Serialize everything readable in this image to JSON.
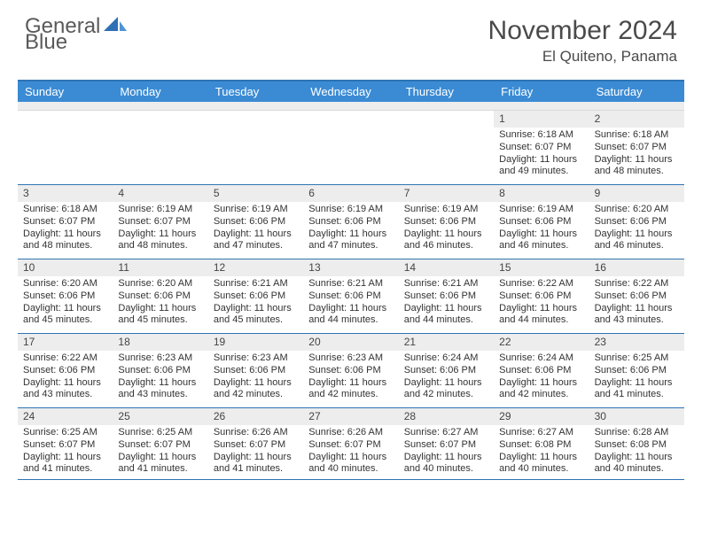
{
  "logo": {
    "text_general": "General",
    "text_blue": "Blue"
  },
  "title": {
    "month": "November 2024",
    "location": "El Quiteno, Panama"
  },
  "colors": {
    "header_bg": "#3b8bd4",
    "header_border": "#2e74b5",
    "daynum_bg": "#ededed",
    "text": "#333333",
    "logo_gray": "#5a5a5a",
    "logo_blue": "#3b7fc4"
  },
  "day_labels": [
    "Sunday",
    "Monday",
    "Tuesday",
    "Wednesday",
    "Thursday",
    "Friday",
    "Saturday"
  ],
  "weeks": [
    [
      {
        "empty": true
      },
      {
        "empty": true
      },
      {
        "empty": true
      },
      {
        "empty": true
      },
      {
        "empty": true
      },
      {
        "n": "1",
        "sunrise": "Sunrise: 6:18 AM",
        "sunset": "Sunset: 6:07 PM",
        "daylight": "Daylight: 11 hours and 49 minutes."
      },
      {
        "n": "2",
        "sunrise": "Sunrise: 6:18 AM",
        "sunset": "Sunset: 6:07 PM",
        "daylight": "Daylight: 11 hours and 48 minutes."
      }
    ],
    [
      {
        "n": "3",
        "sunrise": "Sunrise: 6:18 AM",
        "sunset": "Sunset: 6:07 PM",
        "daylight": "Daylight: 11 hours and 48 minutes."
      },
      {
        "n": "4",
        "sunrise": "Sunrise: 6:19 AM",
        "sunset": "Sunset: 6:07 PM",
        "daylight": "Daylight: 11 hours and 48 minutes."
      },
      {
        "n": "5",
        "sunrise": "Sunrise: 6:19 AM",
        "sunset": "Sunset: 6:06 PM",
        "daylight": "Daylight: 11 hours and 47 minutes."
      },
      {
        "n": "6",
        "sunrise": "Sunrise: 6:19 AM",
        "sunset": "Sunset: 6:06 PM",
        "daylight": "Daylight: 11 hours and 47 minutes."
      },
      {
        "n": "7",
        "sunrise": "Sunrise: 6:19 AM",
        "sunset": "Sunset: 6:06 PM",
        "daylight": "Daylight: 11 hours and 46 minutes."
      },
      {
        "n": "8",
        "sunrise": "Sunrise: 6:19 AM",
        "sunset": "Sunset: 6:06 PM",
        "daylight": "Daylight: 11 hours and 46 minutes."
      },
      {
        "n": "9",
        "sunrise": "Sunrise: 6:20 AM",
        "sunset": "Sunset: 6:06 PM",
        "daylight": "Daylight: 11 hours and 46 minutes."
      }
    ],
    [
      {
        "n": "10",
        "sunrise": "Sunrise: 6:20 AM",
        "sunset": "Sunset: 6:06 PM",
        "daylight": "Daylight: 11 hours and 45 minutes."
      },
      {
        "n": "11",
        "sunrise": "Sunrise: 6:20 AM",
        "sunset": "Sunset: 6:06 PM",
        "daylight": "Daylight: 11 hours and 45 minutes."
      },
      {
        "n": "12",
        "sunrise": "Sunrise: 6:21 AM",
        "sunset": "Sunset: 6:06 PM",
        "daylight": "Daylight: 11 hours and 45 minutes."
      },
      {
        "n": "13",
        "sunrise": "Sunrise: 6:21 AM",
        "sunset": "Sunset: 6:06 PM",
        "daylight": "Daylight: 11 hours and 44 minutes."
      },
      {
        "n": "14",
        "sunrise": "Sunrise: 6:21 AM",
        "sunset": "Sunset: 6:06 PM",
        "daylight": "Daylight: 11 hours and 44 minutes."
      },
      {
        "n": "15",
        "sunrise": "Sunrise: 6:22 AM",
        "sunset": "Sunset: 6:06 PM",
        "daylight": "Daylight: 11 hours and 44 minutes."
      },
      {
        "n": "16",
        "sunrise": "Sunrise: 6:22 AM",
        "sunset": "Sunset: 6:06 PM",
        "daylight": "Daylight: 11 hours and 43 minutes."
      }
    ],
    [
      {
        "n": "17",
        "sunrise": "Sunrise: 6:22 AM",
        "sunset": "Sunset: 6:06 PM",
        "daylight": "Daylight: 11 hours and 43 minutes."
      },
      {
        "n": "18",
        "sunrise": "Sunrise: 6:23 AM",
        "sunset": "Sunset: 6:06 PM",
        "daylight": "Daylight: 11 hours and 43 minutes."
      },
      {
        "n": "19",
        "sunrise": "Sunrise: 6:23 AM",
        "sunset": "Sunset: 6:06 PM",
        "daylight": "Daylight: 11 hours and 42 minutes."
      },
      {
        "n": "20",
        "sunrise": "Sunrise: 6:23 AM",
        "sunset": "Sunset: 6:06 PM",
        "daylight": "Daylight: 11 hours and 42 minutes."
      },
      {
        "n": "21",
        "sunrise": "Sunrise: 6:24 AM",
        "sunset": "Sunset: 6:06 PM",
        "daylight": "Daylight: 11 hours and 42 minutes."
      },
      {
        "n": "22",
        "sunrise": "Sunrise: 6:24 AM",
        "sunset": "Sunset: 6:06 PM",
        "daylight": "Daylight: 11 hours and 42 minutes."
      },
      {
        "n": "23",
        "sunrise": "Sunrise: 6:25 AM",
        "sunset": "Sunset: 6:06 PM",
        "daylight": "Daylight: 11 hours and 41 minutes."
      }
    ],
    [
      {
        "n": "24",
        "sunrise": "Sunrise: 6:25 AM",
        "sunset": "Sunset: 6:07 PM",
        "daylight": "Daylight: 11 hours and 41 minutes."
      },
      {
        "n": "25",
        "sunrise": "Sunrise: 6:25 AM",
        "sunset": "Sunset: 6:07 PM",
        "daylight": "Daylight: 11 hours and 41 minutes."
      },
      {
        "n": "26",
        "sunrise": "Sunrise: 6:26 AM",
        "sunset": "Sunset: 6:07 PM",
        "daylight": "Daylight: 11 hours and 41 minutes."
      },
      {
        "n": "27",
        "sunrise": "Sunrise: 6:26 AM",
        "sunset": "Sunset: 6:07 PM",
        "daylight": "Daylight: 11 hours and 40 minutes."
      },
      {
        "n": "28",
        "sunrise": "Sunrise: 6:27 AM",
        "sunset": "Sunset: 6:07 PM",
        "daylight": "Daylight: 11 hours and 40 minutes."
      },
      {
        "n": "29",
        "sunrise": "Sunrise: 6:27 AM",
        "sunset": "Sunset: 6:08 PM",
        "daylight": "Daylight: 11 hours and 40 minutes."
      },
      {
        "n": "30",
        "sunrise": "Sunrise: 6:28 AM",
        "sunset": "Sunset: 6:08 PM",
        "daylight": "Daylight: 11 hours and 40 minutes."
      }
    ]
  ]
}
